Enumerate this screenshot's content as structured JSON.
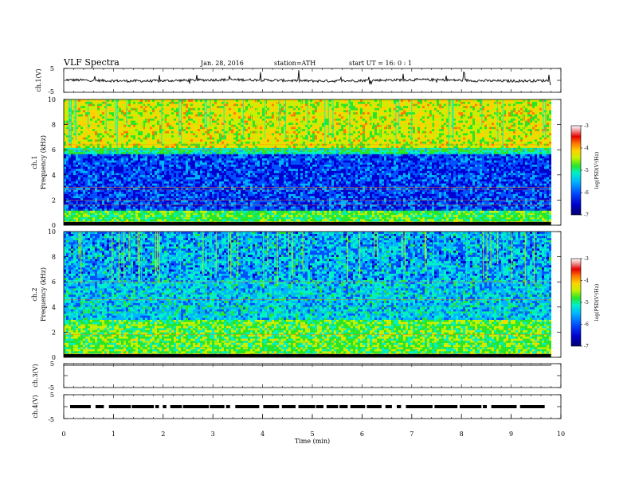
{
  "header": {
    "title": "VLF  Spectra",
    "date": "Jan. 28, 2016",
    "station": "station=ATH",
    "start": "start  UT  =    16: 0   : 1"
  },
  "chart_data": {
    "type": "heatmap",
    "xlabel": "Time  (min)",
    "xlim": [
      0,
      10
    ],
    "x_ticks": [
      "0",
      "1",
      "2",
      "3",
      "4",
      "5",
      "6",
      "7",
      "8",
      "9",
      "10"
    ],
    "data_end_min": 9.8,
    "panels": [
      {
        "kind": "waveform",
        "ylabel": "ch.1(V)",
        "ylim": [
          -5,
          5
        ],
        "y_ticks": [
          "5",
          "-5"
        ]
      },
      {
        "kind": "spectrogram",
        "ylabel": "Frequency  (kHz)",
        "channel_label": "ch.1",
        "ylim_khz": [
          0,
          10
        ],
        "y_ticks": [
          "10",
          "8",
          "6",
          "4",
          "2",
          "0"
        ]
      },
      {
        "kind": "spectrogram",
        "ylabel": "Frequency  (kHz)",
        "channel_label": "ch.2",
        "ylim_khz": [
          0,
          10
        ],
        "y_ticks": [
          "10",
          "8",
          "6",
          "4",
          "2",
          "0"
        ]
      },
      {
        "kind": "waveform",
        "ylabel": "ch.3(V)",
        "ylim": [
          -5,
          5
        ],
        "y_ticks": [
          "5",
          "-5"
        ]
      },
      {
        "kind": "waveform",
        "ylabel": "ch.4(V)",
        "ylim": [
          -5,
          5
        ],
        "y_ticks": [
          "5",
          "-5"
        ]
      }
    ],
    "colorbar": {
      "label": "log(PSD(V²/Hz)",
      "range": [
        -7,
        -3
      ],
      "ticks": [
        "-3",
        "-4",
        "-5",
        "-6",
        "-7"
      ],
      "colors": [
        "#000070",
        "#0000d0",
        "#0050ff",
        "#00b4ff",
        "#00f0c8",
        "#28e628",
        "#c8f000",
        "#ffd200",
        "#ff7800",
        "#e60000",
        "#f0a0a0",
        "#ffffff"
      ]
    }
  }
}
